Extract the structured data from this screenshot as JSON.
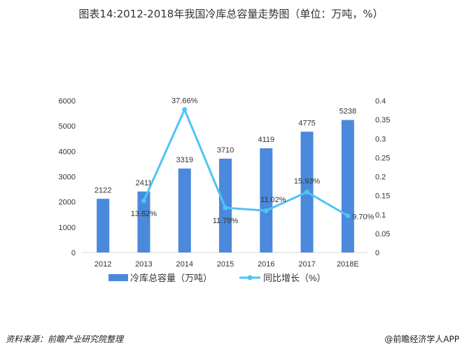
{
  "title": "图表14:2012-2018年我国冷库总容量走势图（单位：万吨，%）",
  "source": "资料来源：前瞻产业研究院整理",
  "brand": "@前瞻经济学人APP",
  "chart_data": {
    "type": "bar+line",
    "categories": [
      "2012",
      "2013",
      "2014",
      "2015",
      "2016",
      "2017",
      "2018E"
    ],
    "series": [
      {
        "name": "冷库总容量（万吨）",
        "type": "bar",
        "axis": "left",
        "color": "#4a89dc",
        "values": [
          2122,
          2411,
          3319,
          3710,
          4119,
          4775,
          5238
        ],
        "labels": [
          "2122",
          "2411",
          "3319",
          "3710",
          "4119",
          "4775",
          "5238"
        ]
      },
      {
        "name": "同比增长（%）",
        "type": "line",
        "axis": "right",
        "color": "#4fc3f7",
        "values": [
          null,
          0.1362,
          0.3766,
          0.1178,
          0.1102,
          0.1593,
          0.097
        ],
        "labels": [
          null,
          "13.62%",
          "37.66%",
          "11.78%",
          "11.02%",
          "15.93%",
          "9.70%"
        ]
      }
    ],
    "left_axis": {
      "ylim": [
        0,
        6000
      ],
      "ticks": [
        "0",
        "1000",
        "2000",
        "3000",
        "4000",
        "5000",
        "6000"
      ]
    },
    "right_axis": {
      "ylim": [
        0,
        0.4
      ],
      "ticks": [
        "0",
        "0.05",
        "0.1",
        "0.15",
        "0.2",
        "0.25",
        "0.3",
        "0.35",
        "0.4"
      ]
    },
    "grid": false,
    "legend": "bottom"
  }
}
